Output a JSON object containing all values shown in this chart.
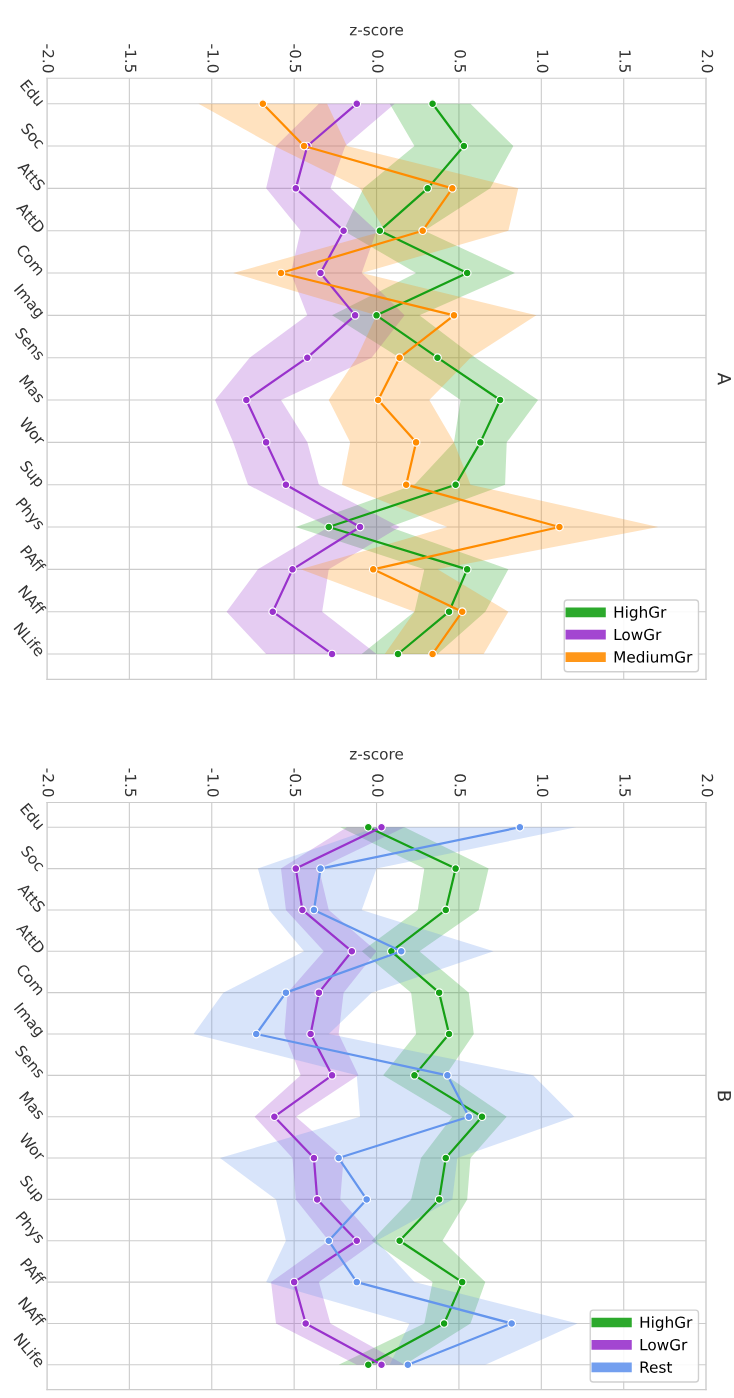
{
  "chart_data": [
    {
      "type": "line",
      "orientation": "horizontal",
      "title": "A",
      "xlabel": "z-score",
      "categories": [
        "Edu",
        "Soc",
        "AttS",
        "AttD",
        "Com",
        "Imag",
        "Sens",
        "Mas",
        "Wor",
        "Sup",
        "Phys",
        "PAff",
        "NAff",
        "NLife"
      ],
      "xlim": [
        -2.0,
        2.0
      ],
      "xticks": [
        {
          "value": -2.0,
          "label": "-2.0"
        },
        {
          "value": -1.5,
          "label": "-1.5"
        },
        {
          "value": -1.0,
          "label": "-1.0"
        },
        {
          "value": -0.5,
          "label": "-0.5"
        },
        {
          "value": 0.0,
          "label": "0.0"
        },
        {
          "value": 0.5,
          "label": "0.5"
        },
        {
          "value": 1.0,
          "label": "1.0"
        },
        {
          "value": 1.5,
          "label": "1.5"
        },
        {
          "value": 2.0,
          "label": "2.0"
        }
      ],
      "grid": true,
      "marker": "circle",
      "legend": "bottom right",
      "series": [
        {
          "name": "HighGr",
          "color": "#15a015",
          "values": [
            0.34,
            0.53,
            0.31,
            0.02,
            0.55,
            0.0,
            0.37,
            0.75,
            0.63,
            0.48,
            -0.29,
            0.55,
            0.44,
            0.13
          ],
          "lower": [
            0.08,
            0.23,
            -0.08,
            -0.2,
            0.24,
            -0.27,
            0.14,
            0.51,
            0.47,
            0.23,
            -0.49,
            0.29,
            0.23,
            -0.09
          ],
          "upper": [
            0.57,
            0.83,
            0.69,
            0.29,
            0.84,
            0.26,
            0.6,
            0.98,
            0.79,
            0.78,
            0.08,
            0.8,
            0.66,
            0.37
          ]
        },
        {
          "name": "LowGr",
          "color": "#9932cc",
          "values": [
            -0.12,
            -0.42,
            -0.49,
            -0.2,
            -0.34,
            -0.13,
            -0.42,
            -0.79,
            -0.67,
            -0.55,
            -0.1,
            -0.51,
            -0.63,
            -0.27
          ],
          "lower": [
            -0.35,
            -0.61,
            -0.67,
            -0.46,
            -0.52,
            -0.42,
            -0.77,
            -0.98,
            -0.87,
            -0.78,
            -0.29,
            -0.72,
            -0.91,
            -0.67
          ],
          "upper": [
            0.11,
            -0.19,
            -0.28,
            0.0,
            -0.09,
            0.17,
            -0.03,
            -0.58,
            -0.42,
            -0.35,
            0.14,
            -0.29,
            -0.33,
            0.0
          ]
        },
        {
          "name": "MediumGr",
          "color": "#ff8c00",
          "values": [
            -0.69,
            -0.44,
            0.46,
            0.28,
            -0.58,
            0.47,
            0.14,
            0.01,
            0.24,
            0.18,
            1.11,
            -0.02,
            0.52,
            0.34
          ],
          "lower": [
            -1.08,
            -0.62,
            -0.1,
            0.05,
            -0.87,
            0.0,
            -0.12,
            -0.29,
            -0.16,
            -0.21,
            0.43,
            -0.46,
            0.23,
            0.05
          ],
          "upper": [
            -0.3,
            -0.18,
            0.86,
            0.8,
            -0.09,
            0.97,
            0.57,
            0.32,
            0.47,
            0.57,
            1.71,
            0.37,
            0.8,
            0.65
          ]
        }
      ]
    },
    {
      "type": "line",
      "orientation": "horizontal",
      "title": "B",
      "xlabel": "z-score",
      "categories": [
        "Edu",
        "Soc",
        "AttS",
        "AttD",
        "Com",
        "Imag",
        "Sens",
        "Mas",
        "Wor",
        "Sup",
        "Phys",
        "PAff",
        "NAff",
        "NLife"
      ],
      "xlim": [
        -2.0,
        2.0
      ],
      "xticks": [
        {
          "value": -2.0,
          "label": "-2.0"
        },
        {
          "value": -1.5,
          "label": "-1.5"
        },
        {
          "value": -1.0,
          "label": "-1.0"
        },
        {
          "value": -0.5,
          "label": "-0.5"
        },
        {
          "value": 0.0,
          "label": "0.0"
        },
        {
          "value": 0.5,
          "label": "0.5"
        },
        {
          "value": 1.0,
          "label": "1.0"
        },
        {
          "value": 1.5,
          "label": "1.5"
        },
        {
          "value": 2.0,
          "label": "2.0"
        }
      ],
      "grid": true,
      "marker": "circle",
      "legend": "bottom right",
      "series": [
        {
          "name": "HighGr",
          "color": "#15a015",
          "values": [
            -0.05,
            0.48,
            0.42,
            0.09,
            0.38,
            0.44,
            0.23,
            0.64,
            0.42,
            0.38,
            0.14,
            0.52,
            0.41,
            -0.05
          ],
          "lower": [
            -0.22,
            0.29,
            0.25,
            -0.09,
            0.21,
            0.24,
            0.04,
            0.46,
            0.27,
            0.21,
            -0.03,
            0.34,
            0.29,
            -0.23
          ],
          "upper": [
            0.17,
            0.68,
            0.62,
            0.26,
            0.56,
            0.59,
            0.42,
            0.79,
            0.57,
            0.55,
            0.4,
            0.66,
            0.57,
            0.17
          ]
        },
        {
          "name": "LowGr",
          "color": "#9932cc",
          "values": [
            0.03,
            -0.49,
            -0.45,
            -0.15,
            -0.35,
            -0.4,
            -0.27,
            -0.62,
            -0.38,
            -0.36,
            -0.12,
            -0.5,
            -0.43,
            0.03
          ],
          "lower": [
            -0.18,
            -0.58,
            -0.55,
            -0.32,
            -0.54,
            -0.56,
            -0.46,
            -0.74,
            -0.51,
            -0.49,
            -0.29,
            -0.64,
            -0.61,
            -0.12
          ],
          "upper": [
            0.17,
            -0.35,
            -0.29,
            0.0,
            -0.2,
            -0.23,
            -0.11,
            -0.49,
            -0.2,
            -0.22,
            0.0,
            -0.35,
            -0.28,
            0.17
          ]
        },
        {
          "name": "Rest",
          "color": "#6495ed",
          "values": [
            0.87,
            -0.34,
            -0.38,
            0.15,
            -0.55,
            -0.73,
            0.43,
            0.56,
            -0.23,
            -0.06,
            -0.29,
            -0.12,
            0.82,
            0.19
          ],
          "lower": [
            0.0,
            -0.72,
            -0.65,
            -0.44,
            -0.93,
            -1.11,
            -0.12,
            -0.1,
            -0.95,
            -0.61,
            -0.55,
            -0.67,
            0.2,
            0.08
          ],
          "upper": [
            1.21,
            0.0,
            -0.09,
            0.71,
            -0.03,
            -0.29,
            0.95,
            1.2,
            0.49,
            0.46,
            0.0,
            0.23,
            1.22,
            0.66
          ]
        }
      ]
    }
  ]
}
